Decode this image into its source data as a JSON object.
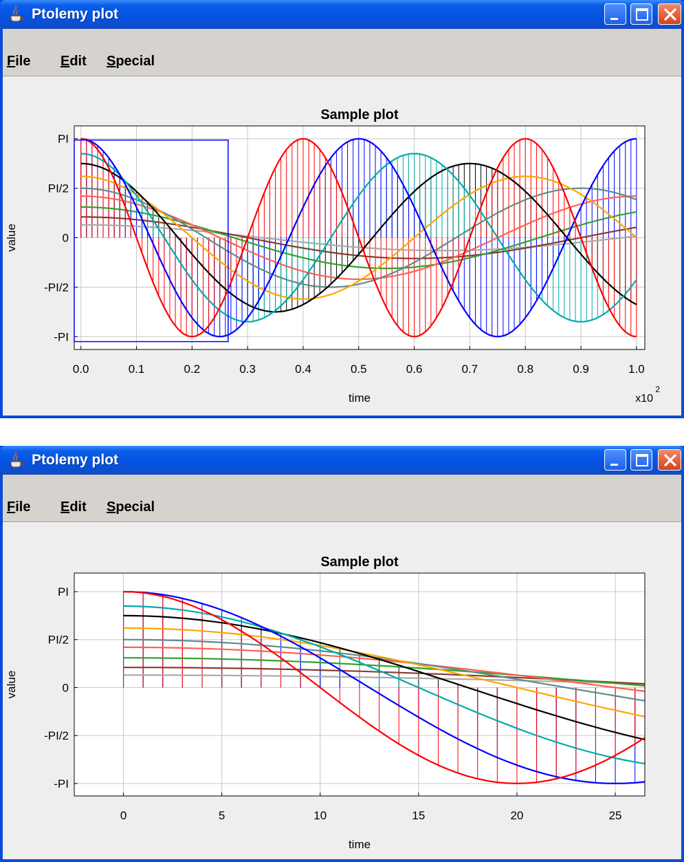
{
  "windows": [
    {
      "title": "Ptolemy plot",
      "menu": [
        {
          "label": "File",
          "mnemonic": "F",
          "rest": "ile"
        },
        {
          "label": "Edit",
          "mnemonic": "E",
          "rest": "dit"
        },
        {
          "label": "Special",
          "mnemonic": "S",
          "rest": "pecial"
        }
      ]
    },
    {
      "title": "Ptolemy plot",
      "menu": [
        {
          "label": "File",
          "mnemonic": "F",
          "rest": "ile"
        },
        {
          "label": "Edit",
          "mnemonic": "E",
          "rest": "dit"
        },
        {
          "label": "Special",
          "mnemonic": "S",
          "rest": "pecial"
        }
      ]
    }
  ],
  "colors": {
    "titlebar": "#0553e2",
    "menubar": "#d6d3ce",
    "plot_background": "#ffffff",
    "grid": "#c8c8c8",
    "zoom_box": "#0000ff"
  },
  "chart_data": [
    {
      "type": "line",
      "title": "Sample plot",
      "xlabel": "time",
      "ylabel": "value",
      "x_exponent_label": "x10",
      "x_exponent_sup": "2",
      "x": {
        "from": 0,
        "to": 100,
        "step": 1
      },
      "xlim": [
        0,
        100
      ],
      "ylim": [
        "-PI",
        "PI"
      ],
      "x_ticks": [
        "0.0",
        "0.1",
        "0.2",
        "0.3",
        "0.4",
        "0.5",
        "0.6",
        "0.7",
        "0.8",
        "0.9",
        "1.0"
      ],
      "y_ticks": [
        "PI",
        "PI/2",
        "0",
        "-PI/2",
        "-PI"
      ],
      "grid": true,
      "stems_from_zero": [
        "red",
        "blue",
        "teal",
        "black"
      ],
      "zoom_box": {
        "x": [
          -1.2,
          26.5
        ],
        "y": [
          -3.3,
          3.1
        ]
      },
      "series": [
        {
          "color": "#ff0000",
          "formula": "PI*cos(PI*x/20)",
          "impulses": true
        },
        {
          "color": "#0000ff",
          "formula": "PI*cos(PI*x/25)",
          "impulses": true
        },
        {
          "color": "#00aaaa",
          "formula": "PI*cos(PI*x/30)*0.85",
          "impulses": true
        },
        {
          "color": "#000000",
          "formula": "PI*cos(PI*x/35)*0.75",
          "impulses": true
        },
        {
          "color": "#ffa500",
          "formula": "PI*cos(PI*x/40)*0.62"
        },
        {
          "color": "#5f8a8b",
          "formula": "PI*cos(PI*x/45)*0.5"
        },
        {
          "color": "#ff6050",
          "formula": "PI*cos(PI*x/50)*0.42"
        },
        {
          "color": "#33a02c",
          "formula": "PI*cos(PI*x/55)*0.31"
        },
        {
          "color": "#8b3a2e",
          "formula": "PI*cos(PI*x/60)*0.21"
        },
        {
          "color": "#a9a9a9",
          "formula": "PI*cos(PI*x/65)*0.13"
        }
      ]
    },
    {
      "type": "line",
      "title": "Sample plot",
      "xlabel": "time",
      "ylabel": "value",
      "xlim": [
        -2.5,
        26.5
      ],
      "ylim": [
        "-PI",
        "PI"
      ],
      "x_ticks": [
        "0",
        "5",
        "10",
        "15",
        "20",
        "25"
      ],
      "y_ticks": [
        "PI",
        "PI/2",
        "0",
        "-PI/2",
        "-PI"
      ],
      "grid": true,
      "description_of_view": "zoomed region of the first plot"
    }
  ]
}
